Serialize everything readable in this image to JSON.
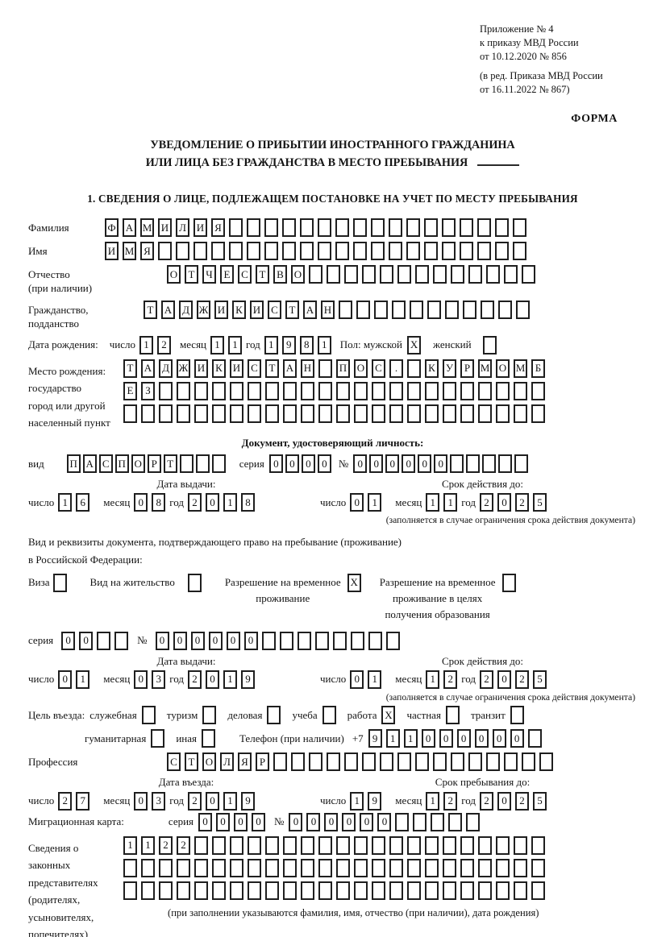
{
  "header": {
    "appendix_lines": [
      "Приложение № 4",
      "к приказу МВД России",
      "от 10.12.2020 № 856"
    ],
    "edition_lines": [
      "(в ред. Приказа МВД России",
      "от 16.11.2022 № 867)"
    ],
    "form_label": "ФОРМА"
  },
  "title": {
    "line1": "УВЕДОМЛЕНИЕ О ПРИБЫТИИ ИНОСТРАННОГО ГРАЖДАНИНА",
    "line2": "ИЛИ ЛИЦА БЕЗ ГРАЖДАНСТВА В МЕСТО ПРЕБЫВАНИЯ"
  },
  "section1": {
    "heading": "1. СВЕДЕНИЯ О ЛИЦЕ, ПОДЛЕЖАЩЕМ ПОСТАНОВКЕ НА УЧЕТ ПО МЕСТУ ПРЕБЫВАНИЯ"
  },
  "common": {
    "day": "число",
    "month": "месяц",
    "year": "год",
    "series": "серия",
    "number_sign": "№",
    "issue_date": "Дата выдачи:",
    "valid_until": "Срок действия до:",
    "restriction_note": "(заполняется в случае ограничения срока действия документа)"
  },
  "person": {
    "surname": {
      "label": "Фамилия",
      "value": "ФАМИЛИЯ"
    },
    "given_name": {
      "label": "Имя",
      "value": "ИМЯ"
    },
    "patronymic": {
      "label": "Отчество",
      "label2": "(при наличии)",
      "value": "ОТЧЕСТВО"
    },
    "citizenship": {
      "label": "Гражданство,",
      "label2": "подданство",
      "value": "ТАДЖИКИСТАН"
    },
    "birth_date": {
      "label": "Дата рождения:",
      "day": "12",
      "month": "11",
      "year": "1981"
    },
    "sex": {
      "label": "Пол: мужской",
      "male": "X",
      "female_label": "женский",
      "female": ""
    },
    "birth_place": {
      "label_lines": [
        "Место рождения:",
        "государство",
        "город или другой",
        "населенный пункт"
      ],
      "row1": "ТАДЖИКИСТАН ПОС. КУРМОМБ",
      "row2": "ЕЗ",
      "row3": ""
    }
  },
  "identity_doc": {
    "heading": "Документ, удостоверяющий личность:",
    "type_label": "вид",
    "type": "ПАСПОРТ",
    "series": "0000",
    "number": "000000",
    "issue": {
      "day": "16",
      "month": "08",
      "year": "2018"
    },
    "valid": {
      "day": "01",
      "month": "11",
      "year": "2025"
    }
  },
  "residence_doc": {
    "intro1": "Вид и реквизиты документа, подтверждающего право на пребывание (проживание)",
    "intro2": "в Российской Федерации:",
    "options": [
      {
        "lines": [
          "Виза"
        ],
        "box": ""
      },
      {
        "lines": [
          "Вид на жительство"
        ],
        "box": ""
      },
      {
        "lines": [
          "Разрешение на временное",
          "проживание"
        ],
        "box": "X"
      },
      {
        "lines": [
          "Разрешение на временное",
          "проживание в целях",
          "получения образования"
        ],
        "box": ""
      }
    ],
    "series": "00",
    "number": "000000",
    "issue": {
      "day": "01",
      "month": "03",
      "year": "2019"
    },
    "valid": {
      "day": "01",
      "month": "12",
      "year": "2025"
    }
  },
  "visit": {
    "purpose_label": "Цель въезда:",
    "purposes": [
      {
        "label": "служебная",
        "box": ""
      },
      {
        "label": "туризм",
        "box": ""
      },
      {
        "label": "деловая",
        "box": ""
      },
      {
        "label": "учеба",
        "box": ""
      },
      {
        "label": "работа",
        "box": "X"
      },
      {
        "label": "частная",
        "box": ""
      },
      {
        "label": "транзит",
        "box": ""
      }
    ],
    "purposes2": [
      {
        "label": "гуманитарная",
        "box": ""
      },
      {
        "label": "иная",
        "box": ""
      }
    ],
    "phone_label": "Телефон (при наличии)",
    "phone_prefix": "+7",
    "phone": "911000000",
    "profession_label": "Профессия",
    "profession": "СТОЛЯР",
    "entry_date_label": "Дата въезда:",
    "entry_date": {
      "day": "27",
      "month": "03",
      "year": "2019"
    },
    "stay_until_label": "Срок пребывания до:",
    "stay_until": {
      "day": "19",
      "month": "12",
      "year": "2025"
    }
  },
  "migration_card": {
    "label": "Миграционная карта:",
    "series": "0000",
    "number": "000000"
  },
  "representatives": {
    "label_lines": [
      "Сведения о",
      "законных",
      "представителях",
      "(родителях,",
      "усыновителях,",
      "попечителях)"
    ],
    "row1": "1122",
    "row2": "",
    "row3": "",
    "note": "(при заполнении указываются фамилия, имя, отчество (при наличии), дата рождения)"
  }
}
